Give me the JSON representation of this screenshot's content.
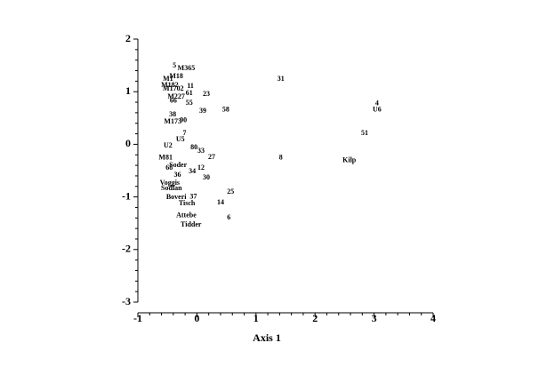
{
  "chart_data": {
    "type": "scatter",
    "x_label": "Axis 1",
    "xlim": [
      -1,
      4
    ],
    "xticks": [
      -1,
      0,
      1,
      2,
      3,
      4
    ],
    "ylim": [
      -3,
      2
    ],
    "yticks": [
      -3,
      -2,
      -1,
      0,
      1,
      2
    ],
    "color": "#000000",
    "points": {
      "labels": [
        "5",
        "M365",
        "M18",
        "M1",
        "M182",
        "M1702",
        "11",
        "61",
        "M227",
        "66",
        "55",
        "23",
        "31",
        "39",
        "58",
        "4",
        "U6",
        "38",
        "M173",
        "90",
        "7",
        "U5",
        "U2",
        "80",
        "33",
        "8",
        "Kilp",
        "51",
        "27",
        "M81",
        "Soder",
        "68",
        "12",
        "34",
        "36",
        "30",
        "Voggis",
        "Sodlan",
        "25",
        "Boveri",
        "37",
        "Tisch",
        "14",
        "Attebe",
        "6",
        "Tidder"
      ],
      "x": [
        -0.38,
        -0.18,
        -0.35,
        -0.49,
        -0.46,
        -0.4,
        -0.11,
        -0.13,
        -0.35,
        -0.4,
        -0.13,
        0.16,
        1.42,
        0.1,
        0.49,
        3.05,
        3.05,
        -0.41,
        -0.41,
        -0.23,
        -0.21,
        -0.28,
        -0.49,
        -0.05,
        0.07,
        1.42,
        2.58,
        2.84,
        0.25,
        -0.53,
        -0.32,
        -0.47,
        0.07,
        -0.08,
        -0.33,
        0.16,
        -0.46,
        -0.43,
        0.57,
        -0.35,
        -0.06,
        -0.17,
        0.4,
        -0.18,
        0.54,
        -0.1
      ],
      "y": [
        1.49,
        1.44,
        1.29,
        1.24,
        1.12,
        1.05,
        1.1,
        0.97,
        0.9,
        0.82,
        0.78,
        0.95,
        1.24,
        0.63,
        0.65,
        0.77,
        0.65,
        0.56,
        0.43,
        0.45,
        0.21,
        0.09,
        -0.03,
        -0.06,
        -0.13,
        -0.26,
        -0.31,
        0.21,
        -0.25,
        -0.26,
        -0.4,
        -0.45,
        -0.45,
        -0.52,
        -0.59,
        -0.64,
        -0.74,
        -0.84,
        -0.91,
        -1.01,
        -1.0,
        -1.13,
        -1.11,
        -1.36,
        -1.4,
        -1.53
      ]
    }
  }
}
